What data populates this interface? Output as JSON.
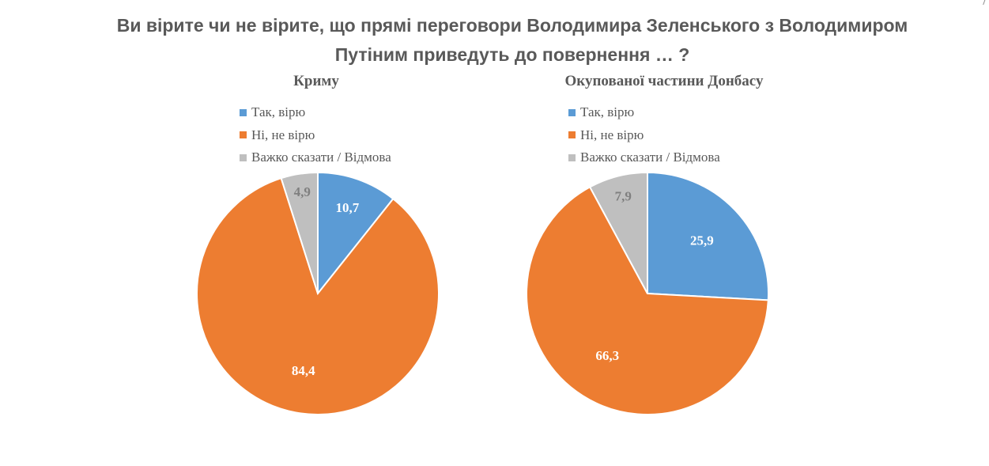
{
  "title": {
    "line1": "Ви вірите чи не вірите, що прямі переговори Володимира Зеленського з Володимиром",
    "line2": "Путіним приведуть до повернення … ?"
  },
  "colors": {
    "yes": "#5b9bd5",
    "no": "#ed7d31",
    "hard": "#bfbfbf",
    "text": "#595959"
  },
  "chart_data": [
    {
      "type": "pie",
      "title": "Криму",
      "categories": [
        "Так, вірю",
        "Ні, не вірю",
        "Важко сказати / Відмова"
      ],
      "values": [
        10.7,
        84.4,
        4.9
      ],
      "value_labels": [
        "10,7",
        "84,4",
        "4,9"
      ],
      "legend_position": "top-left"
    },
    {
      "type": "pie",
      "title": "Окупованої частини Донбасу",
      "categories": [
        "Так, вірю",
        "Ні, не вірю",
        "Важко сказати / Відмова"
      ],
      "values": [
        25.9,
        66.3,
        7.9
      ],
      "value_labels": [
        "25,9",
        "66,3",
        "7,9"
      ],
      "legend_position": "top-left"
    }
  ]
}
